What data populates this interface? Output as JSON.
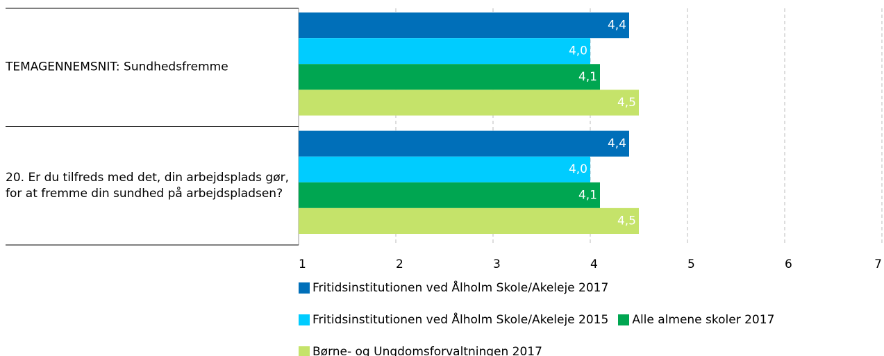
{
  "chart_data": {
    "type": "hbar",
    "categories": [
      "TEMAGENNEMSNIT: Sundhedsfremme",
      "20. Er du tilfreds med det, din arbejdsplads gør, for at fremme din sundhed på arbejdspladsen?"
    ],
    "series": [
      {
        "name": "Fritidsinstitutionen ved Ålholm Skole/Akeleje 2017",
        "color": "#006fb9",
        "values": [
          4.4,
          4.4
        ],
        "value_labels": [
          "4,4",
          "4,4"
        ]
      },
      {
        "name": "Fritidsinstitutionen ved Ålholm Skole/Akeleje 2015",
        "color": "#00ccff",
        "values": [
          4.0,
          4.0
        ],
        "value_labels": [
          "4,0",
          "4,0"
        ]
      },
      {
        "name": "Alle almene skoler 2017",
        "color": "#00a651",
        "values": [
          4.1,
          4.1
        ],
        "value_labels": [
          "4,1",
          "4,1"
        ]
      },
      {
        "name": "Børne- og Ungdomsforvaltningen 2017",
        "color": "#c5e36a",
        "values": [
          4.5,
          4.5
        ],
        "value_labels": [
          "4,5",
          "4,5"
        ]
      }
    ],
    "xlim": [
      1,
      7
    ],
    "xticks": [
      1,
      2,
      3,
      4,
      5,
      6,
      7
    ],
    "grid": true
  }
}
